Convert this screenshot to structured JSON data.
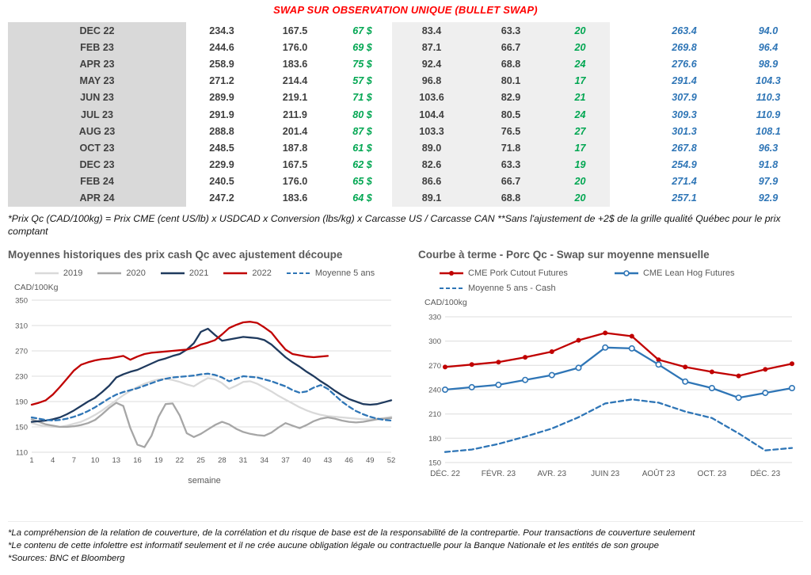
{
  "title": "SWAP SUR OBSERVATION UNIQUE (BULLET SWAP)",
  "table": {
    "rows": [
      {
        "month": "DEC 22",
        "values": [
          "234.3",
          "167.5",
          "67 $",
          "83.4",
          "63.3",
          "20",
          "263.4",
          "94.0"
        ]
      },
      {
        "month": "FEB 23",
        "values": [
          "244.6",
          "176.0",
          "69 $",
          "87.1",
          "66.7",
          "20",
          "269.8",
          "96.4"
        ]
      },
      {
        "month": "APR 23",
        "values": [
          "258.9",
          "183.6",
          "75 $",
          "92.4",
          "68.8",
          "24",
          "276.6",
          "98.9"
        ]
      },
      {
        "month": "MAY 23",
        "values": [
          "271.2",
          "214.4",
          "57 $",
          "96.8",
          "80.1",
          "17",
          "291.4",
          "104.3"
        ]
      },
      {
        "month": "JUN 23",
        "values": [
          "289.9",
          "219.1",
          "71 $",
          "103.6",
          "82.9",
          "21",
          "307.9",
          "110.3"
        ]
      },
      {
        "month": "JUL 23",
        "values": [
          "291.9",
          "211.9",
          "80 $",
          "104.4",
          "80.5",
          "24",
          "309.3",
          "110.9"
        ]
      },
      {
        "month": "AUG 23",
        "values": [
          "288.8",
          "201.4",
          "87 $",
          "103.3",
          "76.5",
          "27",
          "301.3",
          "108.1"
        ]
      },
      {
        "month": "OCT 23",
        "values": [
          "248.5",
          "187.8",
          "61 $",
          "89.0",
          "71.8",
          "17",
          "267.8",
          "96.3"
        ]
      },
      {
        "month": "DEC 23",
        "values": [
          "229.9",
          "167.5",
          "62 $",
          "82.6",
          "63.3",
          "19",
          "254.9",
          "91.8"
        ]
      },
      {
        "month": "FEB 24",
        "values": [
          "240.5",
          "176.0",
          "65 $",
          "86.6",
          "66.7",
          "20",
          "271.4",
          "97.9"
        ]
      },
      {
        "month": "APR 24",
        "values": [
          "247.2",
          "183.6",
          "64 $",
          "89.1",
          "68.8",
          "20",
          "257.1",
          "92.9"
        ]
      }
    ]
  },
  "table_footnote": "*Prix Qc (CAD/100kg) = Prix CME (cent US/lb) x USDCAD x Conversion (lbs/kg) x Carcasse US / Carcasse CAN **Sans l'ajustement de +2$ de la grille qualité Québec pour le prix comptant",
  "chart_data": [
    {
      "type": "line",
      "title": "Moyennes historiques des prix cash Qc avec ajustement découpe",
      "ylabel": "CAD/100Kg",
      "xlabel": "semaine",
      "ylim": [
        110,
        350
      ],
      "yticks": [
        110,
        150,
        190,
        230,
        270,
        310,
        350
      ],
      "x_range": [
        1,
        52
      ],
      "xticks": [
        1,
        4,
        7,
        10,
        13,
        16,
        19,
        22,
        25,
        28,
        31,
        34,
        37,
        40,
        43,
        46,
        49,
        52
      ],
      "grid": "horizontal",
      "legend_position": "top",
      "series": [
        {
          "name": "2019",
          "color": "#d9d9d9",
          "style": "solid",
          "values": [
            156,
            153,
            151,
            150,
            150,
            152,
            155,
            158,
            163,
            169,
            176,
            184,
            192,
            200,
            207,
            213,
            218,
            222,
            225,
            226,
            224,
            221,
            217,
            214,
            221,
            227,
            225,
            219,
            210,
            215,
            221,
            222,
            218,
            212,
            206,
            199,
            193,
            187,
            181,
            176,
            172,
            169,
            167,
            166,
            165,
            164,
            163,
            162,
            162,
            163,
            164,
            166
          ]
        },
        {
          "name": "2020",
          "color": "#a6a6a6",
          "style": "solid",
          "values": [
            162,
            158,
            154,
            152,
            150,
            150,
            151,
            153,
            156,
            161,
            170,
            180,
            188,
            183,
            148,
            122,
            118,
            136,
            166,
            186,
            187,
            168,
            140,
            134,
            139,
            146,
            153,
            158,
            154,
            147,
            142,
            139,
            137,
            136,
            141,
            149,
            156,
            152,
            148,
            153,
            159,
            163,
            165,
            163,
            160,
            158,
            157,
            158,
            160,
            162,
            163,
            164
          ]
        },
        {
          "name": "2021",
          "color": "#1f3a5e",
          "style": "solid",
          "values": [
            158,
            159,
            160,
            162,
            165,
            170,
            176,
            183,
            190,
            196,
            205,
            215,
            228,
            233,
            237,
            240,
            245,
            250,
            255,
            258,
            262,
            265,
            272,
            282,
            300,
            305,
            295,
            286,
            288,
            290,
            292,
            291,
            290,
            287,
            280,
            270,
            260,
            252,
            245,
            237,
            230,
            222,
            215,
            207,
            200,
            194,
            190,
            186,
            185,
            186,
            189,
            192
          ]
        },
        {
          "name": "2022",
          "color": "#c00000",
          "style": "solid",
          "values": [
            185,
            188,
            192,
            201,
            213,
            226,
            239,
            248,
            252,
            255,
            257,
            258,
            260,
            262,
            256,
            261,
            265,
            267,
            268,
            269,
            270,
            271,
            272,
            275,
            280,
            283,
            287,
            296,
            306,
            311,
            315,
            316,
            314,
            307,
            299,
            285,
            272,
            265,
            263,
            261,
            260,
            261,
            262
          ]
        },
        {
          "name": "Moyenne 5 ans",
          "color": "#2e75b6",
          "style": "dashed",
          "values": [
            165,
            163,
            161,
            160,
            161,
            163,
            166,
            170,
            175,
            181,
            188,
            195,
            201,
            205,
            208,
            211,
            215,
            219,
            223,
            226,
            228,
            229,
            230,
            231,
            233,
            234,
            232,
            228,
            222,
            226,
            230,
            229,
            228,
            225,
            222,
            218,
            214,
            208,
            204,
            206,
            212,
            216,
            210,
            200,
            190,
            182,
            175,
            170,
            166,
            163,
            161,
            160
          ]
        }
      ]
    },
    {
      "type": "line",
      "title": "Courbe à terme - Porc Qc - Swap sur moyenne mensuelle",
      "ylabel": "CAD/100kg",
      "ylim": [
        150,
        330
      ],
      "yticks": [
        150,
        180,
        210,
        240,
        270,
        300,
        330
      ],
      "xtick_indices": [
        0,
        2,
        4,
        6,
        8,
        10,
        12
      ],
      "xtick_labels": [
        "DÉC. 22",
        "FÉVR. 23",
        "AVR. 23",
        "JUIN 23",
        "AOÛT 23",
        "OCT. 23",
        "DÉC. 23"
      ],
      "grid": "horizontal",
      "legend_position": "top",
      "series": [
        {
          "name": "CME Pork Cutout Futures",
          "color": "#c00000",
          "style": "solid",
          "marker": "filled",
          "values": [
            268,
            271,
            274,
            280,
            287,
            301,
            310,
            306,
            277,
            268,
            262,
            257,
            265,
            272
          ]
        },
        {
          "name": "CME Lean Hog Futures",
          "color": "#2e75b6",
          "style": "solid",
          "marker": "open",
          "values": [
            240,
            243,
            246,
            252,
            258,
            267,
            292,
            291,
            271,
            250,
            242,
            230,
            236,
            242
          ]
        },
        {
          "name": "Moyenne 5 ans - Cash",
          "color": "#2e75b6",
          "style": "dashed",
          "values": [
            163,
            166,
            173,
            182,
            192,
            206,
            223,
            228,
            224,
            213,
            205,
            186,
            165,
            168
          ]
        }
      ]
    }
  ],
  "footnotes": [
    "*La compréhension de la relation de couverture, de la corrélation et du risque de base est de la responsabilité de la contrepartie. Pour transactions de couverture seulement",
    "*Le contenu de cette infolettre est informatif seulement et il ne crée aucune obligation légale ou contractuelle pour la Banque Nationale et les entités de son groupe",
    "*Sources: BNC et Bloomberg"
  ]
}
